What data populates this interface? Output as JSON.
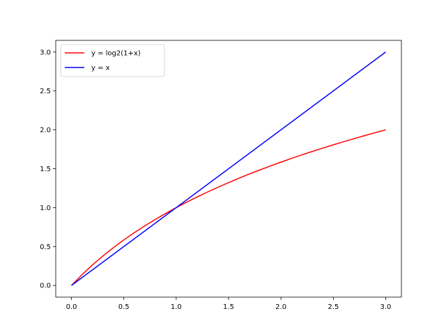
{
  "chart_data": {
    "type": "line",
    "title": "",
    "xlabel": "",
    "ylabel": "",
    "xlim": [
      -0.15,
      3.15
    ],
    "ylim": [
      -0.15,
      3.15
    ],
    "grid": false,
    "legend_position": "top-left",
    "x_ticks": [
      0.0,
      0.5,
      1.0,
      1.5,
      2.0,
      2.5,
      3.0
    ],
    "y_ticks": [
      0.0,
      0.5,
      1.0,
      1.5,
      2.0,
      2.5,
      3.0
    ],
    "x_tick_labels": [
      "0.0",
      "0.5",
      "1.0",
      "1.5",
      "2.0",
      "2.5",
      "3.0"
    ],
    "y_tick_labels": [
      "0.0",
      "0.5",
      "1.0",
      "1.5",
      "2.0",
      "2.5",
      "3.0"
    ],
    "series": [
      {
        "name": "y = log2(1+x)",
        "color": "#ff0000",
        "x": [
          0.0,
          0.1,
          0.2,
          0.3,
          0.4,
          0.5,
          0.6,
          0.7,
          0.8,
          0.9,
          1.0,
          1.1,
          1.2,
          1.3,
          1.4,
          1.5,
          1.6,
          1.7,
          1.8,
          1.9,
          2.0,
          2.1,
          2.2,
          2.3,
          2.4,
          2.5,
          2.6,
          2.7,
          2.8,
          2.9,
          3.0
        ],
        "y": [
          0.0,
          0.1375,
          0.263,
          0.3785,
          0.4854,
          0.585,
          0.6781,
          0.7655,
          0.848,
          0.926,
          1.0,
          1.0704,
          1.1375,
          1.2016,
          1.263,
          1.3219,
          1.3785,
          1.433,
          1.4854,
          1.5361,
          1.585,
          1.6323,
          1.678,
          1.7224,
          1.7655,
          1.8074,
          1.848,
          1.8875,
          1.926,
          1.9635,
          2.0
        ]
      },
      {
        "name": "y = x",
        "color": "#0000ff",
        "x": [
          0.0,
          3.0
        ],
        "y": [
          0.0,
          3.0
        ]
      }
    ]
  }
}
